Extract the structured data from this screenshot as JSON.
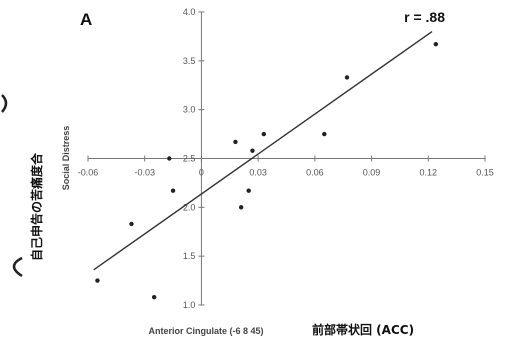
{
  "chart_data": {
    "type": "scatter",
    "panel_label": "A",
    "annotation": "r = .88",
    "xlabel": "Anterior Cingulate (-6 8 45)",
    "xlabel_jp": "前部帯状回 (ACC)",
    "ylabel": "Social Distress",
    "ylabel_jp": "自己申告の苦痛度合",
    "xlim": [
      -0.06,
      0.15
    ],
    "ylim": [
      1.0,
      4.0
    ],
    "x_ticks": [
      "-0.06",
      "-0.03",
      "0",
      "0.03",
      "0.06",
      "0.09",
      "0.12",
      "0.15"
    ],
    "y_ticks": [
      "1.0",
      "1.5",
      "2.0",
      "2.5",
      "3.0",
      "3.5",
      "4.0"
    ],
    "x_tick_values": [
      -0.06,
      -0.03,
      0,
      0.03,
      0.06,
      0.09,
      0.12,
      0.15
    ],
    "y_tick_values": [
      1.0,
      1.5,
      2.0,
      2.5,
      3.0,
      3.5,
      4.0
    ],
    "x_axis_crosses_y": 2.5,
    "y_axis_crosses_x": 0,
    "points": [
      {
        "x": -0.055,
        "y": 1.25
      },
      {
        "x": -0.037,
        "y": 1.83
      },
      {
        "x": -0.025,
        "y": 1.08
      },
      {
        "x": -0.017,
        "y": 2.5
      },
      {
        "x": -0.015,
        "y": 2.17
      },
      {
        "x": 0.018,
        "y": 2.67
      },
      {
        "x": 0.021,
        "y": 2.0
      },
      {
        "x": 0.025,
        "y": 2.17
      },
      {
        "x": 0.027,
        "y": 2.58
      },
      {
        "x": 0.033,
        "y": 2.75
      },
      {
        "x": 0.065,
        "y": 2.75
      },
      {
        "x": 0.077,
        "y": 3.33
      },
      {
        "x": 0.124,
        "y": 3.67
      }
    ],
    "trendline": {
      "x": [
        -0.057,
        0.122
      ],
      "y": [
        1.36,
        3.8
      ]
    },
    "grid": false,
    "legend": "none"
  }
}
